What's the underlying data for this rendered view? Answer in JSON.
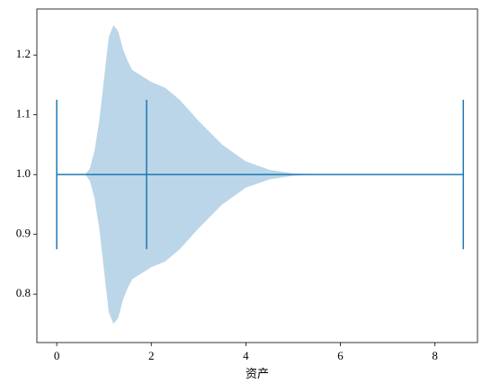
{
  "chart_data": {
    "type": "violin",
    "xlabel": "资产",
    "orientation": "horizontal",
    "position": 1,
    "violin": {
      "x": [
        0,
        0.6,
        0.7,
        0.8,
        0.9,
        1.0,
        1.1,
        1.2,
        1.3,
        1.4,
        1.5,
        1.6,
        1.8,
        2.0,
        2.3,
        2.6,
        3.0,
        3.5,
        4.0,
        4.5,
        5.0,
        5.5,
        8.6
      ],
      "half_width": [
        0,
        0,
        0.01,
        0.04,
        0.09,
        0.16,
        0.23,
        0.25,
        0.24,
        0.21,
        0.19,
        0.175,
        0.165,
        0.155,
        0.145,
        0.125,
        0.09,
        0.05,
        0.022,
        0.008,
        0.002,
        0,
        0
      ]
    },
    "stats": {
      "min": 0,
      "mean": 1.9,
      "max": 8.6
    },
    "extrema_half_height": 0.125,
    "fill_color": "#1f77b4",
    "fill_opacity": 0.3,
    "line_color": "#1f77b4",
    "xlim": [
      -0.42,
      8.9
    ],
    "ylim": [
      0.719,
      1.277
    ],
    "xticks": [
      0,
      2,
      4,
      6,
      8
    ],
    "yticks": [
      0.8,
      0.9,
      {
        "value": 1,
        "label": "1.0"
      },
      1.1,
      1.2
    ],
    "grid": false
  }
}
